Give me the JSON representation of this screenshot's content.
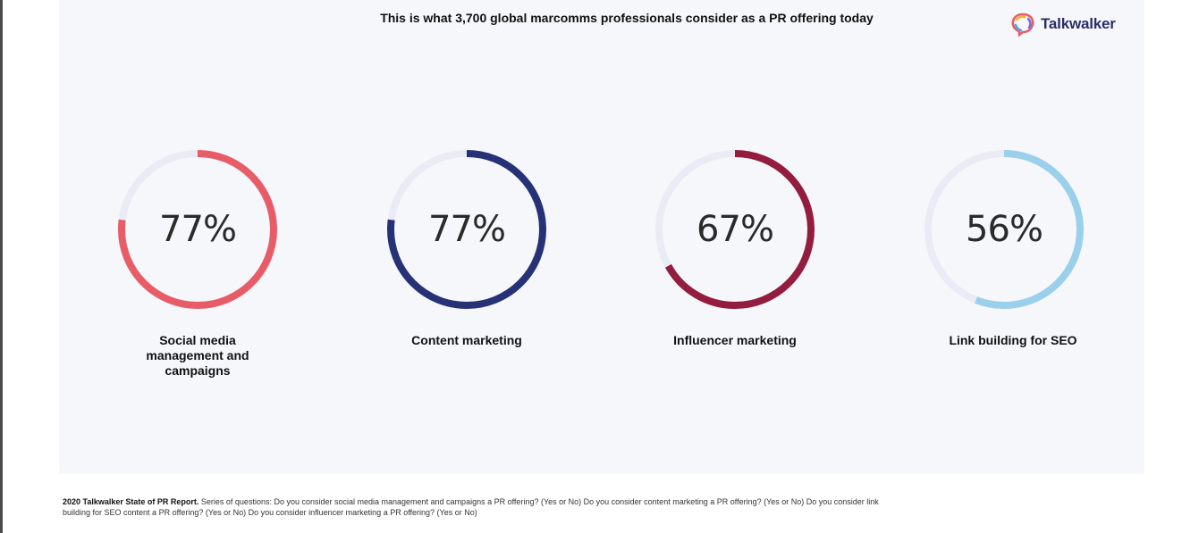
{
  "title": "This is what 3,700 global marcomms professionals consider as a PR offering today",
  "brand": {
    "name": "Talkwalker"
  },
  "colors": {
    "track": "#e9ecf4",
    "social": "#e85c68",
    "content": "#263275",
    "influencer": "#931c3f",
    "seo": "#9ad0eb"
  },
  "chart_data": {
    "type": "pie",
    "style": "donut",
    "items": [
      {
        "label": "Social media management and campaigns",
        "value": 77,
        "display": "77%",
        "color": "#e85c68",
        "label_lines": [
          "Social media",
          "management and",
          "campaigns"
        ]
      },
      {
        "label": "Content marketing",
        "value": 77,
        "display": "77%",
        "color": "#263275",
        "label_lines": [
          "Content marketing"
        ]
      },
      {
        "label": "Influencer marketing",
        "value": 67,
        "display": "67%",
        "color": "#931c3f",
        "label_lines": [
          "Influencer marketing"
        ]
      },
      {
        "label": "Link building for SEO",
        "value": 56,
        "display": "56%",
        "color": "#9ad0eb",
        "label_lines": [
          "Link building for SEO"
        ]
      }
    ]
  },
  "footer": {
    "source": "2020 Talkwalker State of PR Report.",
    "line1": "Series of questions: Do you consider social media management and campaigns a PR offering? (Yes or No) Do you consider content marketing a PR offering? (Yes or No) Do you consider link",
    "line2": "building for SEO content a PR offering? (Yes or No) Do you consider influencer marketing a PR offering?  (Yes or No)"
  }
}
